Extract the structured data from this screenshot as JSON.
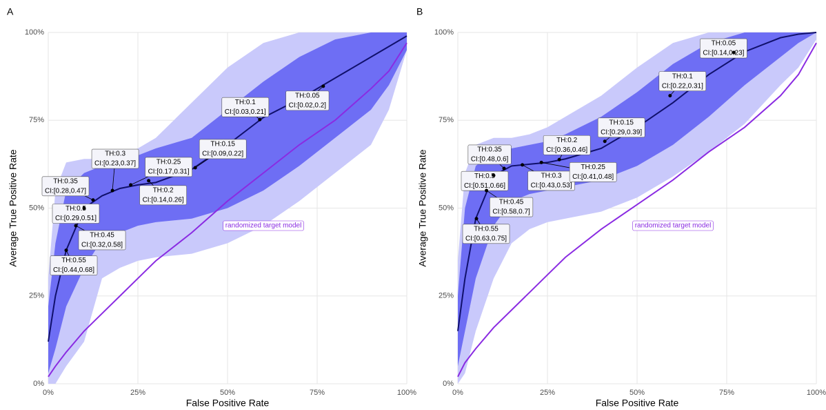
{
  "chart_data": [
    {
      "type": "line",
      "panel_label": "A",
      "x_label": "False Positive Rate",
      "y_label": "Average True Positive Rate",
      "xlim": [
        0,
        100
      ],
      "ylim": [
        0,
        100
      ],
      "grid": true,
      "xticks": [
        {
          "value": 0,
          "label": "0%"
        },
        {
          "value": 25,
          "label": "25%"
        },
        {
          "value": 50,
          "label": "50%"
        },
        {
          "value": 75,
          "label": "75%"
        },
        {
          "value": 100,
          "label": "100%"
        }
      ],
      "yticks": [
        {
          "value": 0,
          "label": "0%"
        },
        {
          "value": 25,
          "label": "25%"
        },
        {
          "value": 50,
          "label": "50%"
        },
        {
          "value": 75,
          "label": "75%"
        },
        {
          "value": 100,
          "label": "100%"
        }
      ],
      "x": [
        0,
        2,
        5,
        10,
        15,
        20,
        25,
        30,
        40,
        50,
        60,
        70,
        80,
        90,
        95,
        100
      ],
      "bands": [
        {
          "color": "#c9c9fb",
          "lower": [
            0,
            0,
            5,
            12,
            30,
            33,
            35,
            36,
            37,
            40,
            45,
            52,
            60,
            68,
            78,
            95
          ],
          "upper": [
            30,
            55,
            63,
            64,
            64,
            65,
            67,
            70,
            80,
            90,
            97,
            100,
            100,
            100,
            100,
            100
          ]
        },
        {
          "color": "#6e6ef4",
          "lower": [
            3,
            10,
            22,
            33,
            41,
            43,
            45,
            46,
            47,
            50,
            55,
            62,
            70,
            78,
            85,
            95
          ],
          "upper": [
            22,
            40,
            55,
            60,
            62,
            64,
            65,
            67,
            70,
            78,
            86,
            93,
            98,
            100,
            100,
            100
          ]
        }
      ],
      "series": [
        {
          "color": "#10106b",
          "values": [
            12,
            25,
            38,
            50,
            53.5,
            55.6,
            56.6,
            57.3,
            61,
            68,
            75.8,
            81,
            87,
            93,
            96,
            99
          ]
        },
        {
          "name": "randomized target model",
          "color": "#8a2be2",
          "values": [
            2,
            5,
            9,
            15,
            20,
            25,
            30,
            35,
            43,
            52,
            60,
            68,
            75,
            84,
            89,
            97
          ]
        }
      ],
      "point_color": "#000000",
      "thresholds": [
        {
          "label": "TH:0.55",
          "ci": "CI:[0.44,0.68]",
          "x": 5,
          "y": 38
        },
        {
          "label": "TH:0.5",
          "ci": "CI:[0.29,0.51]",
          "x": 10,
          "y": 50
        },
        {
          "label": "TH:0.45",
          "ci": "CI:[0.32,0.58]",
          "x": 7.7,
          "y": 45
        },
        {
          "label": "TH:0.35",
          "ci": "CI:[0.28,0.47]",
          "x": 12.5,
          "y": 52.3
        },
        {
          "label": "TH:0.3",
          "ci": "CI:[0.23,0.37]",
          "x": 17.9,
          "y": 55
        },
        {
          "label": "TH:0.25",
          "ci": "CI:[0.17,0.31]",
          "x": 23,
          "y": 56.6
        },
        {
          "label": "TH:0.2",
          "ci": "CI:[0.14,0.26]",
          "x": 28,
          "y": 57.8
        },
        {
          "label": "TH:0.15",
          "ci": "CI:[0.09,0.22]",
          "x": 41,
          "y": 61.5
        },
        {
          "label": "TH:0.1",
          "ci": "CI:[0.03,0.21]",
          "x": 59,
          "y": 75.2
        },
        {
          "label": "TH:0.05",
          "ci": "CI:[0.02,0.2]",
          "x": 76.7,
          "y": 84.7
        }
      ]
    },
    {
      "type": "line",
      "panel_label": "B",
      "x_label": "False Positive Rate",
      "y_label": "Average True Positive Rate",
      "xlim": [
        0,
        100
      ],
      "ylim": [
        0,
        100
      ],
      "grid": true,
      "xticks": [
        {
          "value": 0,
          "label": "0%"
        },
        {
          "value": 25,
          "label": "25%"
        },
        {
          "value": 50,
          "label": "50%"
        },
        {
          "value": 75,
          "label": "75%"
        },
        {
          "value": 100,
          "label": "100%"
        }
      ],
      "yticks": [
        {
          "value": 0,
          "label": "0%"
        },
        {
          "value": 25,
          "label": "25%"
        },
        {
          "value": 50,
          "label": "50%"
        },
        {
          "value": 75,
          "label": "75%"
        },
        {
          "value": 100,
          "label": "100%"
        }
      ],
      "x": [
        0,
        2,
        5,
        10,
        15,
        20,
        25,
        30,
        40,
        50,
        60,
        70,
        80,
        90,
        95,
        100
      ],
      "bands": [
        {
          "color": "#c9c9fb",
          "lower": [
            0,
            3,
            15,
            30,
            40,
            44,
            46,
            47,
            49,
            53,
            59,
            66,
            74,
            85,
            90,
            98
          ],
          "upper": [
            35,
            60,
            68,
            70,
            70,
            71,
            73,
            76,
            82,
            90,
            97,
            100,
            100,
            100,
            100,
            100
          ]
        },
        {
          "color": "#6e6ef4",
          "lower": [
            5,
            15,
            30,
            45,
            52,
            54,
            55,
            56,
            58,
            62,
            68,
            76,
            85,
            93,
            97,
            100
          ],
          "upper": [
            25,
            50,
            62,
            66,
            67,
            68,
            69,
            71,
            76,
            83,
            91,
            97,
            100,
            100,
            100,
            100
          ]
        }
      ],
      "series": [
        {
          "color": "#10106b",
          "values": [
            15,
            30,
            47,
            59.3,
            62,
            62.5,
            63,
            64,
            67,
            73,
            80,
            88,
            94.5,
            98.5,
            99.5,
            100
          ]
        },
        {
          "name": "randomized target model",
          "color": "#8a2be2",
          "values": [
            2,
            6,
            10,
            16,
            21,
            26,
            31,
            36,
            44,
            51,
            58,
            66,
            73,
            82,
            88,
            97
          ]
        }
      ],
      "point_color": "#000000",
      "thresholds": [
        {
          "label": "TH:0.55",
          "ci": "CI:[0.63,0.75]",
          "x": 5.2,
          "y": 47
        },
        {
          "label": "TH:0.5",
          "ci": "CI:[0.51,0.66]",
          "x": 10,
          "y": 59.3
        },
        {
          "label": "TH:0.45",
          "ci": "CI:[0.58,0.7]",
          "x": 8,
          "y": 55
        },
        {
          "label": "TH:0.35",
          "ci": "CI:[0.48,0.6]",
          "x": 12.9,
          "y": 61.3
        },
        {
          "label": "TH:0.3",
          "ci": "CI:[0.43,0.53]",
          "x": 18,
          "y": 62.3
        },
        {
          "label": "TH:0.25",
          "ci": "CI:[0.41,0.48]",
          "x": 23.3,
          "y": 63
        },
        {
          "label": "TH:0.2",
          "ci": "CI:[0.36,0.46]",
          "x": 28.3,
          "y": 63.8
        },
        {
          "label": "TH:0.15",
          "ci": "CI:[0.29,0.39]",
          "x": 41,
          "y": 69
        },
        {
          "label": "TH:0.1",
          "ci": "CI:[0.22,0.31]",
          "x": 59.2,
          "y": 82
        },
        {
          "label": "TH:0.05",
          "ci": "CI:[0.14,0.23]",
          "x": 77,
          "y": 94.3
        }
      ]
    }
  ]
}
